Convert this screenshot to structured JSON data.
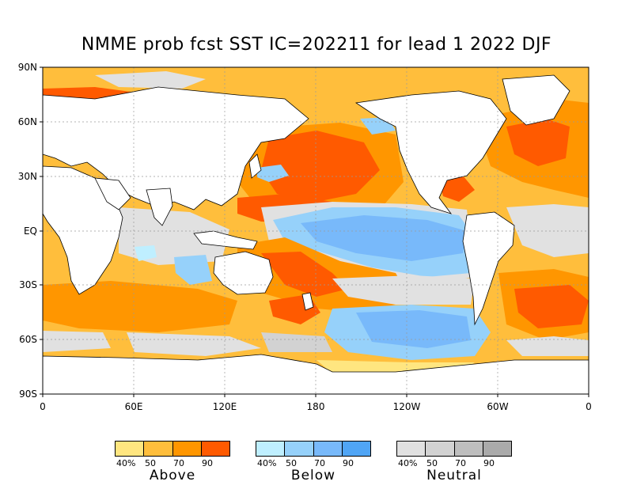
{
  "title": "NMME prob fcst SST IC=202211 for lead 1 2022 DJF",
  "lat_labels": [
    "90N",
    "60N",
    "30N",
    "EQ",
    "30S",
    "60S",
    "90S"
  ],
  "lon_labels": [
    "0",
    "60E",
    "120E",
    "180",
    "120W",
    "60W",
    "0"
  ],
  "colors": {
    "above": [
      "#ffe680",
      "#ffbe3c",
      "#ff9600",
      "#ff5a00"
    ],
    "below": [
      "#bfefff",
      "#96d1fa",
      "#78b9fa",
      "#50a5f5"
    ],
    "neutral": [
      "#e1e1e1",
      "#d2d2d2",
      "#bebebe",
      "#aaaaaa"
    ],
    "land": "#ffffff"
  },
  "legend": [
    {
      "name": "Above",
      "key": "above",
      "ticks": [
        "40%",
        "50",
        "70",
        "90"
      ]
    },
    {
      "name": "Below",
      "key": "below",
      "ticks": [
        "40%",
        "50",
        "70",
        "90"
      ]
    },
    {
      "name": "Neutral",
      "key": "neutral",
      "ticks": [
        "40%",
        "50",
        "70",
        "90"
      ]
    }
  ]
}
